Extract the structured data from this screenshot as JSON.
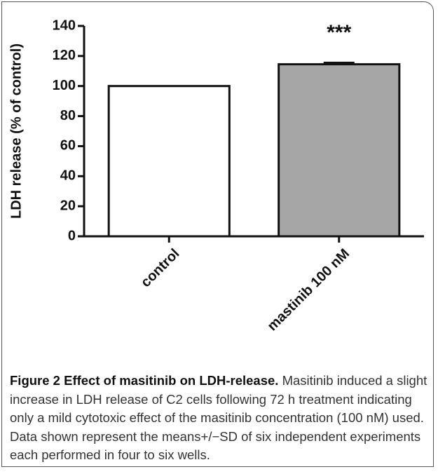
{
  "chart_data": {
    "type": "bar",
    "y_label": "LDH release (% of control)",
    "categories": [
      "control",
      "mastinib 100 nM"
    ],
    "values": [
      100,
      114.5
    ],
    "errors": [
      0,
      1
    ],
    "colors": [
      "#ffffff",
      "#a6a6a6"
    ],
    "ylim": [
      0,
      140
    ],
    "yticks": [
      0,
      20,
      40,
      60,
      80,
      100,
      120,
      140
    ],
    "annotations": [
      {
        "text": "***",
        "x": "mastinib 100 nM"
      }
    ]
  },
  "caption": {
    "title": "Figure 2 Effect of masitinib on LDH-release.",
    "text": "Masitinib induced a slight increase in LDH release of C2 cells following 72 h treatment indicating only a mild cytotoxic effect of the masitinib concentration (100 nM) used. Data shown represent the means+/−SD of six independent experiments each performed in four to six wells."
  }
}
